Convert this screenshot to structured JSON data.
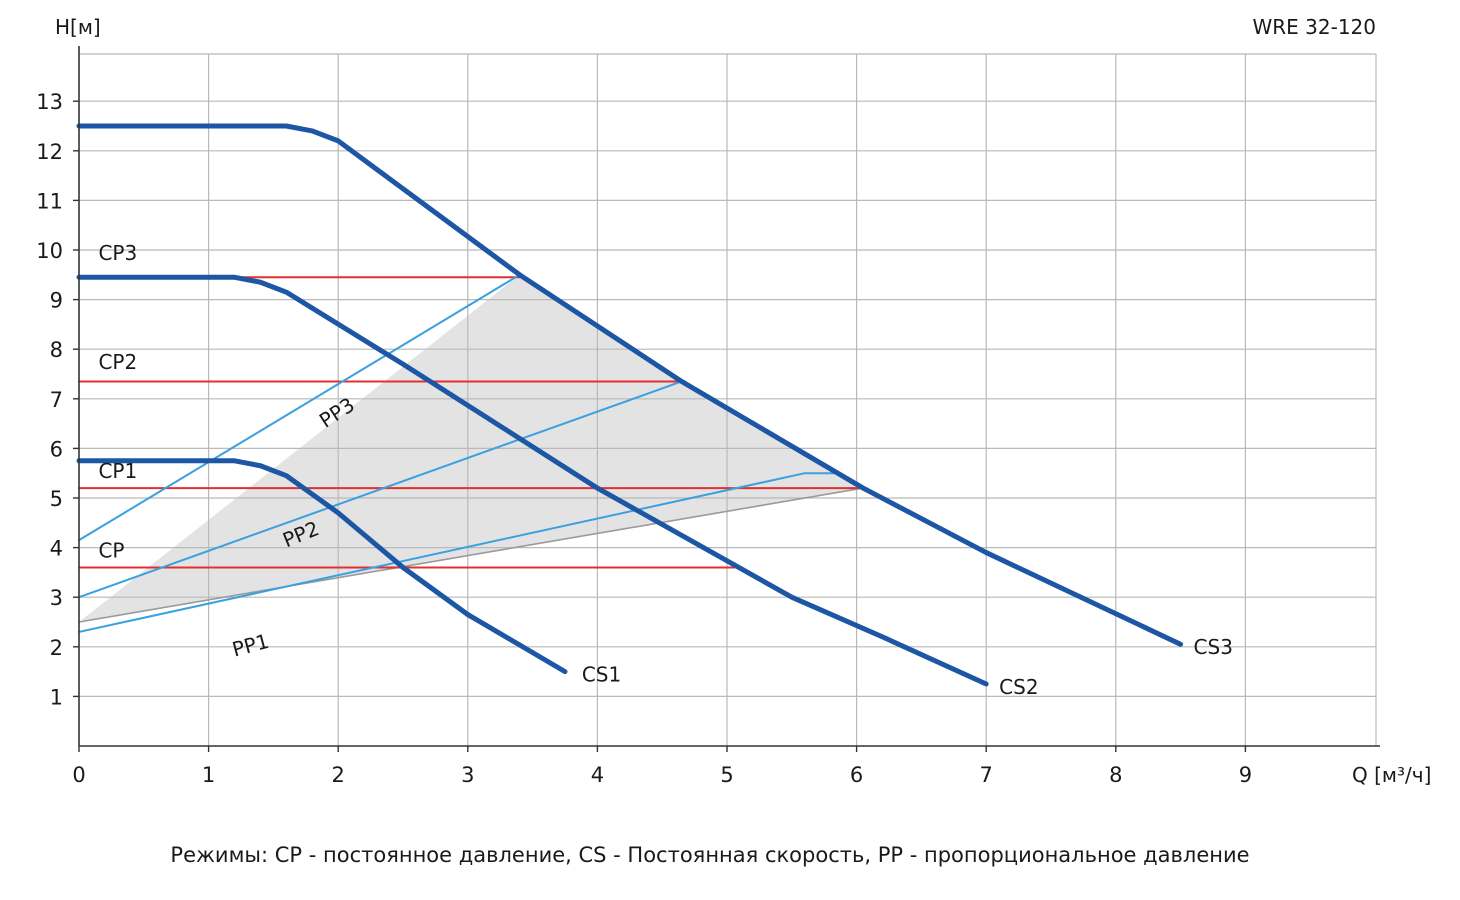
{
  "chart_data": {
    "type": "line",
    "title": "WRE 32-120",
    "ylabel": "H[м]",
    "xlabel": "Q [м³/ч]",
    "xlim": [
      0,
      10
    ],
    "ylim": [
      0,
      14
    ],
    "xticks": [
      0,
      1,
      2,
      3,
      4,
      5,
      6,
      7,
      8,
      9
    ],
    "yticks": [
      1,
      2,
      3,
      4,
      5,
      6,
      7,
      8,
      9,
      10,
      11,
      12,
      13
    ],
    "grid": true,
    "operating_area": {
      "color": "#e3e3e3",
      "points": [
        [
          0,
          2.5
        ],
        [
          3.4,
          9.5
        ],
        [
          4.65,
          7.35
        ],
        [
          6.05,
          5.2
        ]
      ]
    },
    "series": [
      {
        "name": "CS3",
        "kind": "constant-speed",
        "color": "#1c56a4",
        "x": [
          0,
          1.6,
          1.8,
          2.0,
          3.4,
          4.65,
          6.05,
          7.0,
          8.5
        ],
        "y": [
          12.5,
          12.5,
          12.4,
          12.2,
          9.5,
          7.35,
          5.2,
          3.9,
          2.05
        ]
      },
      {
        "name": "CS2",
        "kind": "constant-speed",
        "color": "#1c56a4",
        "x": [
          0,
          1.2,
          1.4,
          1.6,
          2.5,
          4.0,
          5.5,
          6.2,
          7.0
        ],
        "y": [
          9.45,
          9.45,
          9.35,
          9.15,
          7.7,
          5.2,
          3.0,
          2.2,
          1.25
        ]
      },
      {
        "name": "CS1",
        "kind": "constant-speed",
        "color": "#1c56a4",
        "x": [
          0,
          1.2,
          1.4,
          1.6,
          2.0,
          2.5,
          3.0,
          3.75
        ],
        "y": [
          5.75,
          5.75,
          5.65,
          5.45,
          4.7,
          3.6,
          2.65,
          1.5
        ]
      },
      {
        "name": "PP3",
        "kind": "proportional-pressure",
        "color": "#3aa0e0",
        "x": [
          0,
          3.4
        ],
        "y": [
          4.15,
          9.5
        ]
      },
      {
        "name": "PP2",
        "kind": "proportional-pressure",
        "color": "#3aa0e0",
        "x": [
          0,
          4.65
        ],
        "y": [
          3.0,
          7.35
        ]
      },
      {
        "name": "PP1",
        "kind": "proportional-pressure",
        "color": "#3aa0e0",
        "x": [
          0,
          5.6,
          5.85,
          6.05
        ],
        "y": [
          2.3,
          5.5,
          5.5,
          5.2
        ]
      },
      {
        "name": "CP3",
        "kind": "constant-pressure",
        "color": "#e03030",
        "x": [
          0,
          3.4
        ],
        "y": [
          9.45,
          9.45
        ]
      },
      {
        "name": "CP2",
        "kind": "constant-pressure",
        "color": "#e03030",
        "x": [
          0,
          4.65
        ],
        "y": [
          7.35,
          7.35
        ]
      },
      {
        "name": "CP1",
        "kind": "constant-pressure",
        "color": "#e03030",
        "x": [
          0,
          6.05
        ],
        "y": [
          5.2,
          5.2
        ]
      },
      {
        "name": "CP",
        "kind": "constant-pressure",
        "color": "#e03030",
        "x": [
          0,
          5.1
        ],
        "y": [
          3.6,
          3.6
        ]
      },
      {
        "name": "",
        "kind": "boundary",
        "color": "#9a9a9a",
        "x": [
          0,
          6.05
        ],
        "y": [
          2.5,
          5.2
        ]
      }
    ],
    "annotations": [
      {
        "text": "CP3",
        "x": 0.15,
        "y": 9.8
      },
      {
        "text": "CP2",
        "x": 0.15,
        "y": 7.6
      },
      {
        "text": "CP1",
        "x": 0.15,
        "y": 5.4
      },
      {
        "text": "CP",
        "x": 0.15,
        "y": 3.8
      },
      {
        "text": "PP3",
        "x": 1.9,
        "y": 6.4,
        "rotate": -33
      },
      {
        "text": "PP2",
        "x": 1.6,
        "y": 4.0,
        "rotate": -22
      },
      {
        "text": "PP1",
        "x": 1.2,
        "y": 1.8,
        "rotate": -15
      },
      {
        "text": "CS1",
        "x": 3.88,
        "y": 1.3
      },
      {
        "text": "CS2",
        "x": 7.1,
        "y": 1.05
      },
      {
        "text": "CS3",
        "x": 8.6,
        "y": 1.85
      }
    ]
  },
  "caption": "Режимы: CP - постоянное давление, CS - Постоянная скорость, PP - пропорциональное давление"
}
